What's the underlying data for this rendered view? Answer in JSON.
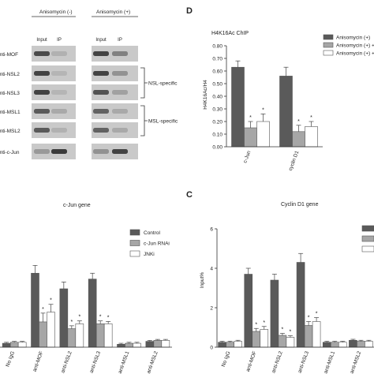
{
  "colors": {
    "dark": "#5a5a5a",
    "mid": "#a6a6a6",
    "light": "#ffffff",
    "blot_bg": "#c9c9c9",
    "band": "#2b2b2b"
  },
  "blot": {
    "groups": [
      "Anisomycin (-)",
      "Anisomycin (+)"
    ],
    "lanes": [
      "Input",
      "IP",
      "Input",
      "IP"
    ],
    "rows": [
      "anti-MOF",
      "anti-NSL2",
      "anti-NSL3",
      "anti-MSL1",
      "anti-MSL2",
      "anti-c-Jun"
    ],
    "bracket_labels": [
      "NSL-specific",
      "MSL-specific"
    ]
  },
  "panel_d": {
    "letter": "D",
    "title": "H4K16Ac ChIP",
    "legend": [
      "Anisomycin (+)",
      "Anisomycin (+) +",
      "Anisomycin (+) +"
    ],
    "ylabel": "H4K16Ac/H4",
    "yticks": [
      "0.00",
      "0.10",
      "0.20",
      "0.30",
      "0.40",
      "0.50",
      "0.60",
      "0.70",
      "0.80"
    ],
    "star": "*"
  },
  "panel_b": {
    "title": "c-Jun gene",
    "legend": [
      "Control",
      "c-Jun RNAi",
      "JNKi"
    ],
    "star": "*"
  },
  "panel_c": {
    "letter": "C",
    "title": "Cyclin D1 gene",
    "ylabel": "Input%",
    "yticks": [
      "0",
      "2",
      "4",
      "6"
    ],
    "star": "*"
  },
  "chart_data": [
    {
      "type": "bar",
      "title": "H4K16Ac ChIP",
      "ylabel": "H4K16Ac/H4",
      "ylim": [
        0,
        0.8
      ],
      "categories": [
        "c-Jun",
        "cyclin D1"
      ],
      "series": [
        {
          "name": "Anisomycin (+)",
          "values": [
            0.63,
            0.56
          ],
          "errors": [
            0.05,
            0.07
          ]
        },
        {
          "name": "Anisomycin (+) +",
          "values": [
            0.15,
            0.12
          ],
          "errors": [
            0.05,
            0.05
          ]
        },
        {
          "name": "Anisomycin (+) +",
          "values": [
            0.2,
            0.16
          ],
          "errors": [
            0.06,
            0.04
          ]
        }
      ],
      "significance": [
        [
          false,
          true,
          true
        ],
        [
          false,
          true,
          true
        ]
      ]
    },
    {
      "type": "bar",
      "title": "c-Jun gene",
      "ylim": [
        0,
        6
      ],
      "categories": [
        "No IgG",
        "anti-MOF",
        "anti-NSL2",
        "anti-NSL3",
        "anti-MSL1",
        "anti-MSL2"
      ],
      "series": [
        {
          "name": "Control",
          "values": [
            0.2,
            3.8,
            3.0,
            3.5,
            0.15,
            0.3
          ],
          "errors": [
            0.05,
            0.4,
            0.35,
            0.3,
            0.05,
            0.05
          ]
        },
        {
          "name": "c-Jun RNAi",
          "values": [
            0.25,
            1.3,
            0.95,
            1.2,
            0.2,
            0.35
          ],
          "errors": [
            0.05,
            0.45,
            0.15,
            0.15,
            0.05,
            0.05
          ]
        },
        {
          "name": "JNKi",
          "values": [
            0.25,
            1.8,
            1.2,
            1.2,
            0.2,
            0.35
          ],
          "errors": [
            0.05,
            0.4,
            0.15,
            0.12,
            0.05,
            0.05
          ]
        }
      ],
      "significance": [
        [
          false,
          false,
          false
        ],
        [
          false,
          true,
          true
        ],
        [
          false,
          true,
          true
        ],
        [
          false,
          true,
          true
        ],
        [
          false,
          false,
          false
        ],
        [
          false,
          false,
          false
        ]
      ]
    },
    {
      "type": "bar",
      "title": "Cyclin D1 gene",
      "ylabel": "Input%",
      "ylim": [
        0,
        6
      ],
      "categories": [
        "No IgG",
        "anti-MOF",
        "anti-NSL2",
        "anti-NSL3",
        "anti-MSL1",
        "anti-MSL2"
      ],
      "series": [
        {
          "values": [
            0.25,
            3.7,
            3.4,
            4.3,
            0.25,
            0.35
          ],
          "errors": [
            0.05,
            0.3,
            0.3,
            0.45,
            0.05,
            0.05
          ]
        },
        {
          "values": [
            0.25,
            0.8,
            0.6,
            1.1,
            0.25,
            0.3
          ],
          "errors": [
            0.05,
            0.15,
            0.1,
            0.2,
            0.05,
            0.05
          ]
        },
        {
          "values": [
            0.3,
            0.9,
            0.5,
            1.3,
            0.25,
            0.3
          ],
          "errors": [
            0.05,
            0.15,
            0.08,
            0.2,
            0.05,
            0.05
          ]
        }
      ],
      "significance": [
        [
          false,
          false,
          false
        ],
        [
          false,
          true,
          true
        ],
        [
          false,
          true,
          true
        ],
        [
          false,
          true,
          true
        ],
        [
          false,
          false,
          false
        ],
        [
          false,
          false,
          false
        ]
      ]
    }
  ]
}
